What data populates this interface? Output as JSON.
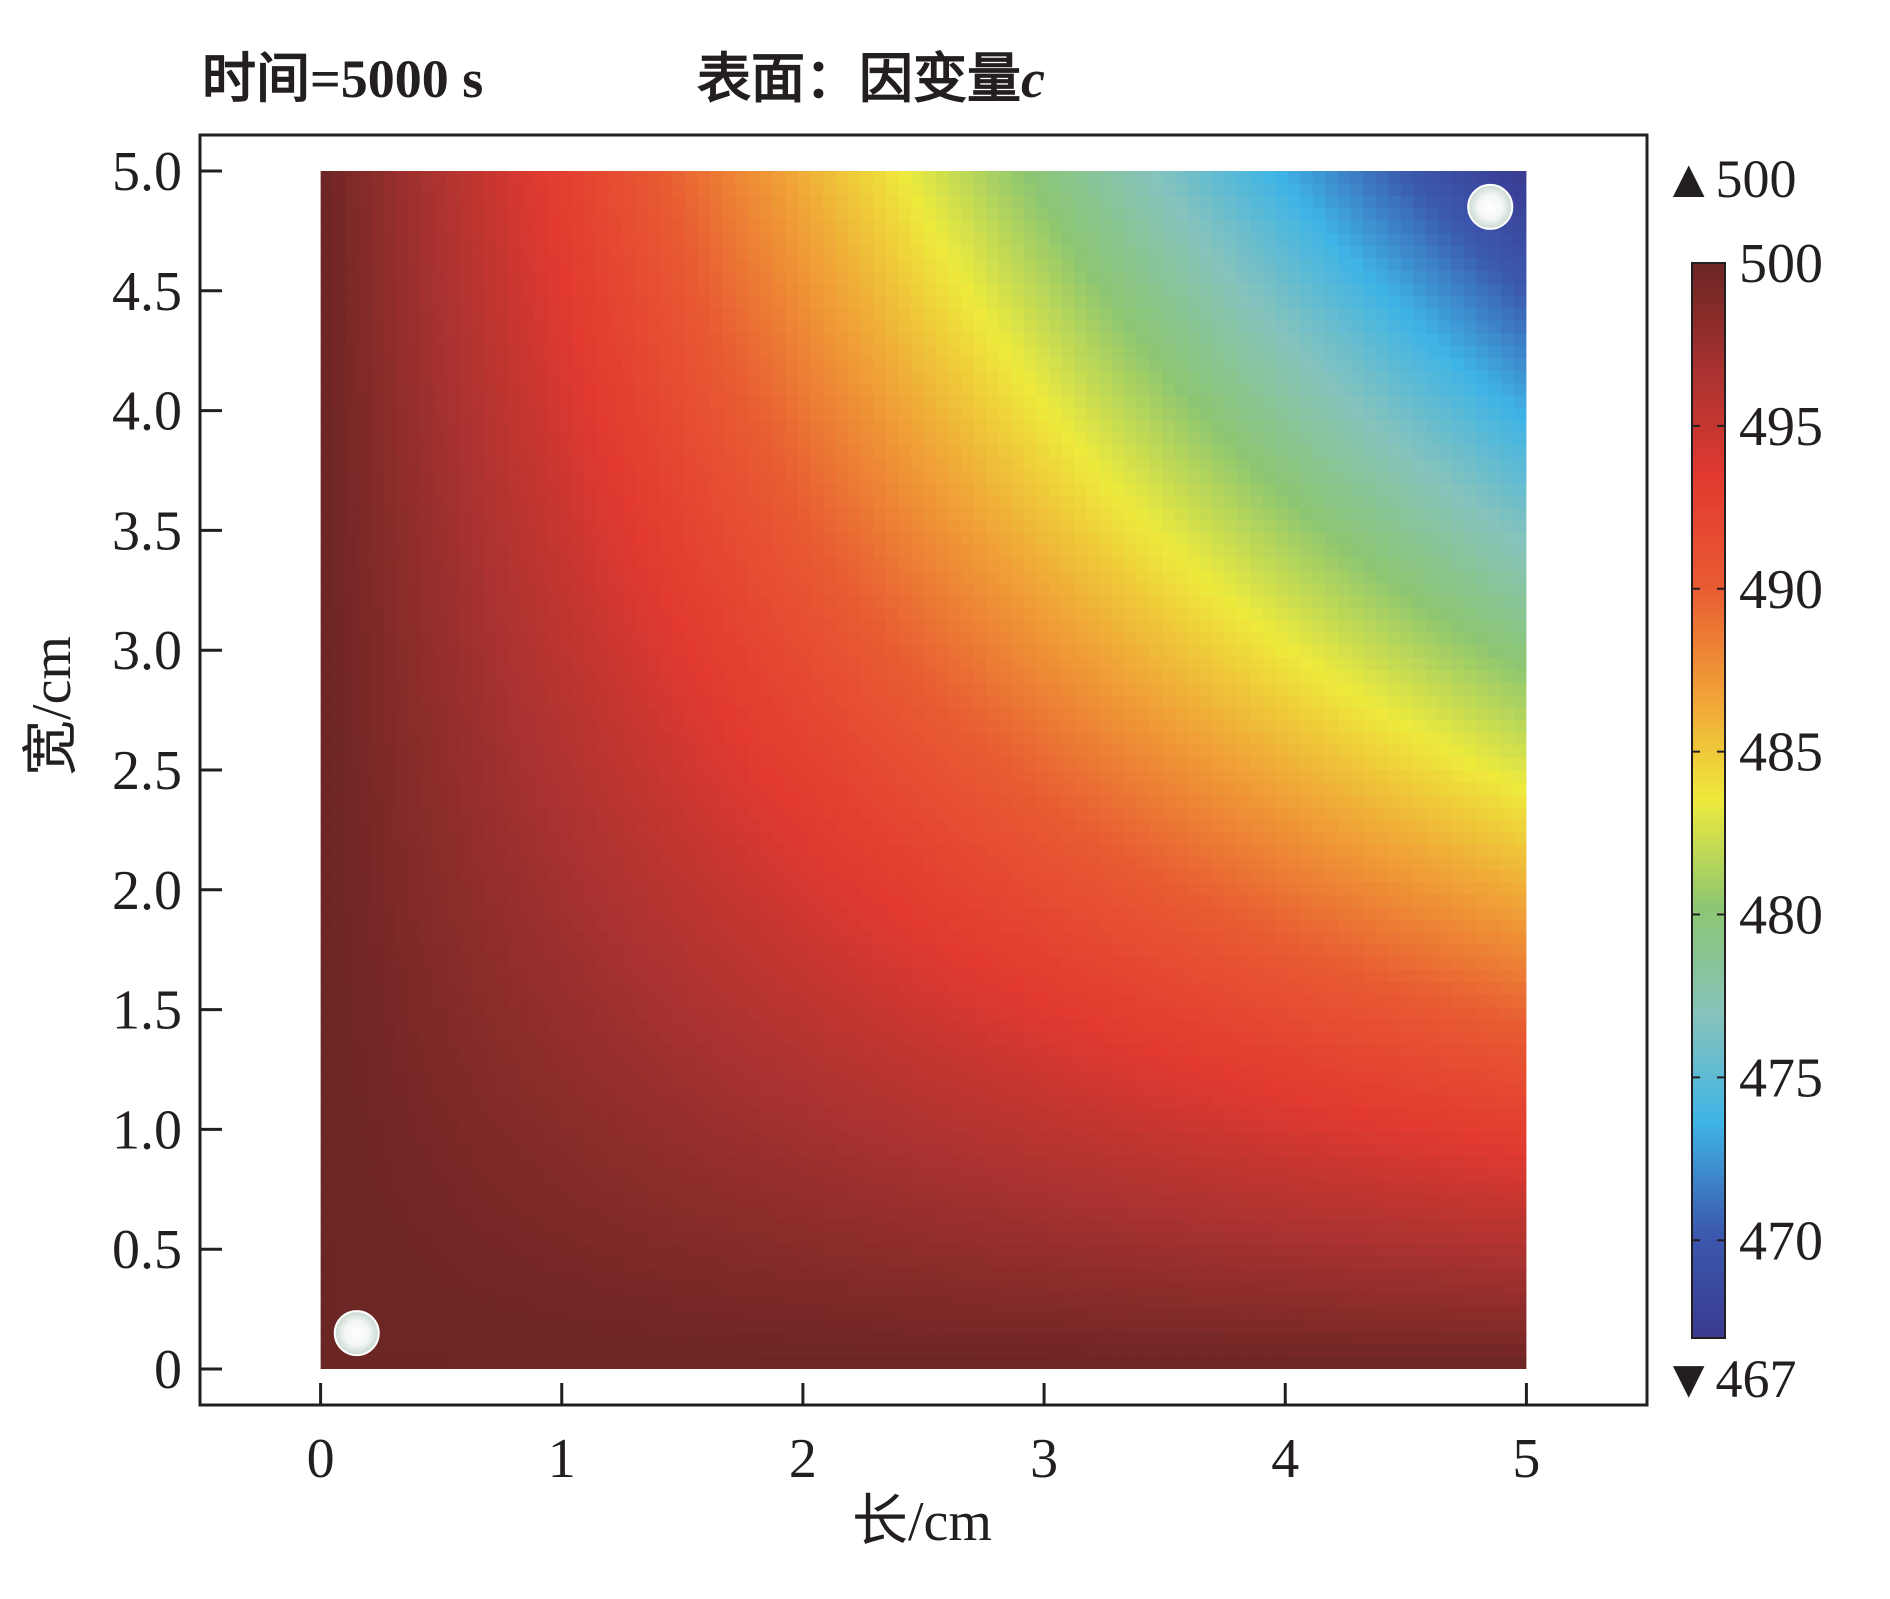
{
  "chart_data": {
    "type": "heatmap",
    "title_time": "时间=5000 s",
    "title_surface": "表面：因变量",
    "title_variable": "c",
    "xlabel": "长/cm",
    "ylabel": "宽/cm",
    "xlim": [
      -0.5,
      5.5
    ],
    "ylim": [
      -0.15,
      5.15
    ],
    "domain": {
      "x": [
        0,
        5
      ],
      "y": [
        0,
        5
      ]
    },
    "x_ticks": [
      0,
      1,
      2,
      3,
      4,
      5
    ],
    "x_tick_labels": [
      "0",
      "1",
      "2",
      "3",
      "4",
      "5"
    ],
    "y_ticks": [
      0,
      0.5,
      1.0,
      1.5,
      2.0,
      2.5,
      3.0,
      3.5,
      4.0,
      4.5,
      5.0
    ],
    "y_tick_labels": [
      "0",
      "0.5",
      "1.0",
      "1.5",
      "2.0",
      "2.5",
      "3.0",
      "3.5",
      "4.0",
      "4.5",
      "5.0"
    ],
    "colorbar": {
      "max_marker": "▲500",
      "min_marker": "▼467",
      "range": [
        467,
        500
      ],
      "ticks": [
        500,
        495,
        490,
        485,
        480,
        475,
        470
      ],
      "tick_labels": [
        "500",
        "495",
        "490",
        "485",
        "480",
        "475",
        "470"
      ],
      "colormap": [
        "#3a3a8f",
        "#3b5ab0",
        "#3fb4e6",
        "#86c3bc",
        "#8cc672",
        "#eeea3c",
        "#f0a037",
        "#e85a32",
        "#e23a30",
        "#a83230",
        "#6b2624"
      ]
    },
    "points": [
      {
        "x": 0.15,
        "y": 0.15
      },
      {
        "x": 4.85,
        "y": 4.85
      }
    ],
    "min_value": 467,
    "max_value": 500
  }
}
